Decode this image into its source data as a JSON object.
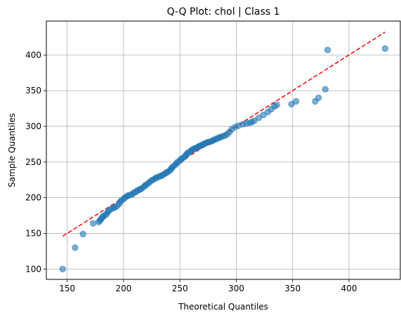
{
  "chart_data": {
    "type": "scatter",
    "title": "Q-Q Plot: chol | Class 1",
    "xlabel": "Theoretical Quantiles",
    "ylabel": "Sample Quantiles",
    "xlim": [
      131.5,
      445.5
    ],
    "ylim": [
      85.5,
      447.5
    ],
    "xticks": [
      150,
      200,
      250,
      300,
      350,
      400
    ],
    "yticks": [
      100,
      150,
      200,
      250,
      300,
      350,
      400
    ],
    "grid": true,
    "reference_line": {
      "x": [
        146,
        432
      ],
      "y": [
        146,
        432
      ],
      "color": "#ff0000",
      "style": "dashed"
    },
    "points_color": "#1f77b4",
    "points": [
      [
        146,
        100
      ],
      [
        157,
        130
      ],
      [
        164,
        149
      ],
      [
        173,
        164
      ],
      [
        178,
        166
      ],
      [
        179,
        168
      ],
      [
        180,
        170
      ],
      [
        181,
        172
      ],
      [
        182,
        174
      ],
      [
        183,
        175
      ],
      [
        185,
        177
      ],
      [
        186,
        180
      ],
      [
        187,
        182
      ],
      [
        189,
        184
      ],
      [
        191,
        186
      ],
      [
        192,
        186
      ],
      [
        194,
        188
      ],
      [
        196,
        191
      ],
      [
        197,
        194
      ],
      [
        198,
        196
      ],
      [
        200,
        198
      ],
      [
        201,
        200
      ],
      [
        203,
        202
      ],
      [
        204,
        203
      ],
      [
        206,
        204
      ],
      [
        208,
        205
      ],
      [
        209,
        207
      ],
      [
        211,
        208
      ],
      [
        212,
        210
      ],
      [
        214,
        211
      ],
      [
        215,
        212
      ],
      [
        216,
        213
      ],
      [
        218,
        215
      ],
      [
        219,
        217
      ],
      [
        220,
        218
      ],
      [
        222,
        220
      ],
      [
        223,
        222
      ],
      [
        225,
        224
      ],
      [
        226,
        225
      ],
      [
        228,
        227
      ],
      [
        229,
        228
      ],
      [
        231,
        229
      ],
      [
        232,
        230
      ],
      [
        234,
        231
      ],
      [
        235,
        232
      ],
      [
        237,
        234
      ],
      [
        238,
        235
      ],
      [
        239,
        236
      ],
      [
        241,
        238
      ],
      [
        242,
        240
      ],
      [
        243,
        242
      ],
      [
        244,
        244
      ],
      [
        246,
        246
      ],
      [
        247,
        248
      ],
      [
        248,
        250
      ],
      [
        250,
        252
      ],
      [
        251,
        254
      ],
      [
        252,
        255
      ],
      [
        254,
        257
      ],
      [
        255,
        259
      ],
      [
        256,
        261
      ],
      [
        257,
        263
      ],
      [
        259,
        264
      ],
      [
        260,
        266
      ],
      [
        261,
        267
      ],
      [
        262,
        268
      ],
      [
        263,
        269
      ],
      [
        265,
        270
      ],
      [
        266,
        271
      ],
      [
        267,
        272
      ],
      [
        268,
        273
      ],
      [
        270,
        274
      ],
      [
        271,
        275
      ],
      [
        272,
        276
      ],
      [
        274,
        277
      ],
      [
        275,
        278
      ],
      [
        276,
        278
      ],
      [
        278,
        279
      ],
      [
        279,
        280
      ],
      [
        280,
        281
      ],
      [
        282,
        282
      ],
      [
        283,
        283
      ],
      [
        285,
        284
      ],
      [
        286,
        285
      ],
      [
        288,
        286
      ],
      [
        290,
        287
      ],
      [
        292,
        289
      ],
      [
        294,
        292
      ],
      [
        296,
        296
      ],
      [
        299,
        299
      ],
      [
        302,
        301
      ],
      [
        306,
        303
      ],
      [
        309,
        304
      ],
      [
        312,
        305
      ],
      [
        314,
        306
      ],
      [
        316,
        308
      ],
      [
        320,
        312
      ],
      [
        324,
        316
      ],
      [
        328,
        320
      ],
      [
        331,
        324
      ],
      [
        334,
        328
      ],
      [
        336,
        330
      ],
      [
        349,
        331
      ],
      [
        353,
        335
      ],
      [
        370,
        335
      ],
      [
        373,
        340
      ],
      [
        379,
        352
      ],
      [
        381,
        407
      ],
      [
        432,
        409
      ]
    ]
  }
}
